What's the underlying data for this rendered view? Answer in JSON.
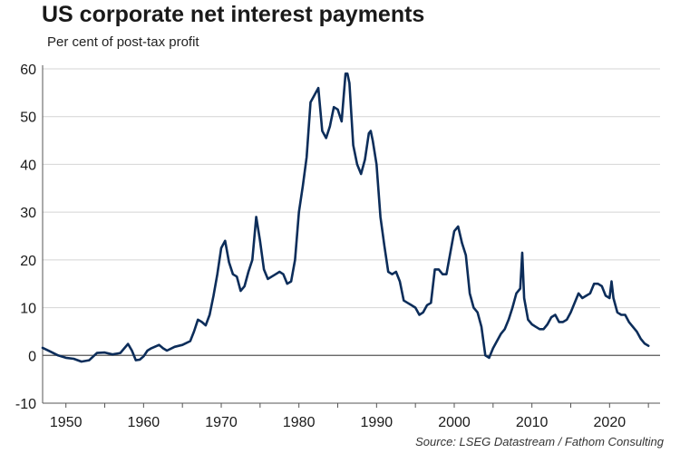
{
  "chart_data": {
    "type": "line",
    "title": "US corporate net interest payments",
    "subtitle": "Per cent of post-tax profit",
    "source": "Source: LSEG Datastream / Fathom Consulting",
    "ylim": [
      -10,
      60
    ],
    "yticks": [
      -10,
      0,
      10,
      20,
      30,
      40,
      50,
      60
    ],
    "xlim": [
      1947,
      2026.5
    ],
    "xticks": [
      1950,
      1960,
      1970,
      1980,
      1990,
      2000,
      2010,
      2020
    ],
    "grid": "horizontal",
    "series": [
      {
        "color": "#0c2d5a",
        "x": [
          1947.0,
          1948.0,
          1949.0,
          1950.0,
          1951.0,
          1952.0,
          1953.0,
          1954.0,
          1955.0,
          1956.0,
          1957.0,
          1958.0,
          1958.5,
          1959.0,
          1959.5,
          1960.0,
          1960.5,
          1961.0,
          1962.0,
          1962.5,
          1963.0,
          1964.0,
          1965.0,
          1966.0,
          1966.5,
          1967.0,
          1967.5,
          1968.0,
          1968.5,
          1969.0,
          1969.5,
          1970.0,
          1970.5,
          1971.0,
          1971.5,
          1972.0,
          1972.5,
          1973.0,
          1973.5,
          1974.0,
          1974.5,
          1975.0,
          1975.5,
          1976.0,
          1976.5,
          1977.0,
          1977.5,
          1978.0,
          1978.5,
          1979.0,
          1979.5,
          1980.0,
          1980.5,
          1981.0,
          1981.5,
          1982.0,
          1982.5,
          1983.0,
          1983.5,
          1984.0,
          1984.5,
          1985.0,
          1985.5,
          1986.0,
          1986.25,
          1986.5,
          1987.0,
          1987.5,
          1988.0,
          1988.5,
          1989.0,
          1989.25,
          1989.5,
          1990.0,
          1990.5,
          1991.0,
          1991.5,
          1992.0,
          1992.5,
          1993.0,
          1993.5,
          1994.0,
          1994.5,
          1995.0,
          1995.5,
          1996.0,
          1996.5,
          1997.0,
          1997.5,
          1998.0,
          1998.5,
          1999.0,
          1999.5,
          2000.0,
          2000.5,
          2001.0,
          2001.5,
          2002.0,
          2002.5,
          2003.0,
          2003.5,
          2004.0,
          2004.5,
          2005.0,
          2005.5,
          2006.0,
          2006.5,
          2007.0,
          2007.5,
          2008.0,
          2008.5,
          2008.75,
          2009.0,
          2009.5,
          2010.0,
          2010.5,
          2011.0,
          2011.5,
          2012.0,
          2012.5,
          2013.0,
          2013.5,
          2014.0,
          2014.5,
          2015.0,
          2015.5,
          2016.0,
          2016.5,
          2017.0,
          2017.5,
          2018.0,
          2018.5,
          2019.0,
          2019.5,
          2020.0,
          2020.25,
          2020.5,
          2021.0,
          2021.5,
          2022.0,
          2022.5,
          2023.0,
          2023.5,
          2024.0,
          2024.5,
          2025.0
        ],
        "values": [
          1.6,
          0.8,
          0.0,
          -0.5,
          -0.7,
          -1.3,
          -1.0,
          0.5,
          0.6,
          0.2,
          0.5,
          2.4,
          1.0,
          -1.0,
          -0.9,
          -0.2,
          1.0,
          1.5,
          2.2,
          1.5,
          1.0,
          1.8,
          2.2,
          3.0,
          5.0,
          7.5,
          7.0,
          6.3,
          8.5,
          12.5,
          17.0,
          22.5,
          24.0,
          19.5,
          17.0,
          16.5,
          13.5,
          14.5,
          17.5,
          20.0,
          29.0,
          24.0,
          18.0,
          16.0,
          16.5,
          17.0,
          17.5,
          17.0,
          15.0,
          15.5,
          20.0,
          30.0,
          35.5,
          41.5,
          53.0,
          54.5,
          56.0,
          47.0,
          45.5,
          48.0,
          52.0,
          51.5,
          49.0,
          59.0,
          59.0,
          57.0,
          44.0,
          40.0,
          38.0,
          41.0,
          46.5,
          47.0,
          45.0,
          40.0,
          29.0,
          23.0,
          17.5,
          17.0,
          17.5,
          15.5,
          11.5,
          11.0,
          10.5,
          10.0,
          8.5,
          9.0,
          10.5,
          11.0,
          18.0,
          18.0,
          17.0,
          17.0,
          21.5,
          26.0,
          27.0,
          23.5,
          21.0,
          13.0,
          10.0,
          9.0,
          6.0,
          0.0,
          -0.5,
          1.5,
          3.0,
          4.5,
          5.5,
          7.5,
          10.0,
          13.0,
          14.0,
          21.5,
          12.0,
          7.5,
          6.5,
          6.0,
          5.5,
          5.5,
          6.5,
          8.0,
          8.5,
          7.0,
          7.0,
          7.5,
          9.0,
          11.0,
          13.0,
          12.0,
          12.5,
          13.0,
          15.0,
          15.0,
          14.5,
          12.5,
          12.0,
          15.5,
          12.0,
          9.0,
          8.5,
          8.5,
          7.0,
          6.0,
          5.0,
          3.5,
          2.5,
          2.0
        ]
      }
    ]
  }
}
